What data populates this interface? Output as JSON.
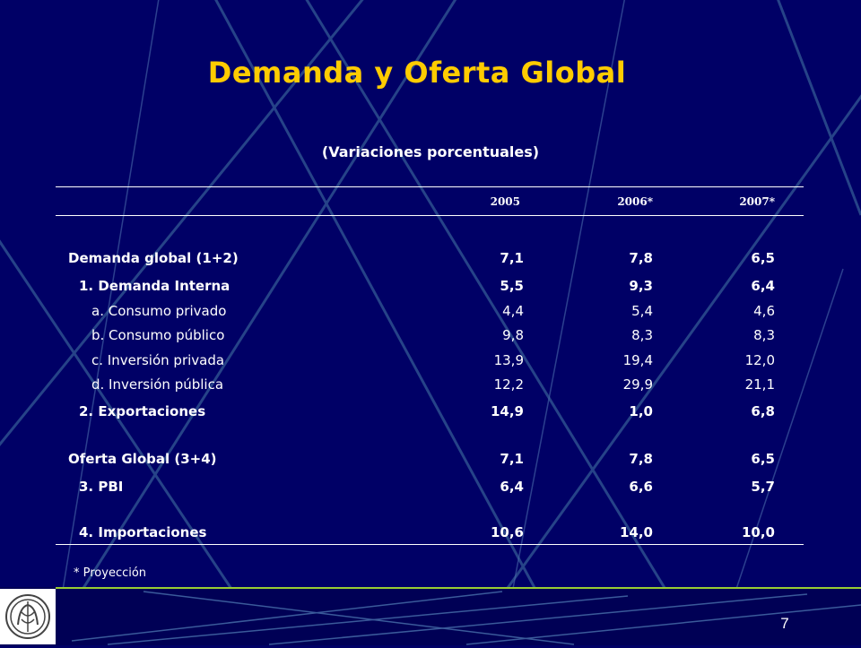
{
  "slide": {
    "title": "Demanda y Oferta Global",
    "subtitle": "(Variaciones porcentuales)",
    "note": "* Proyección",
    "page_number": "7"
  },
  "table": {
    "headers": [
      "2005",
      "2006*",
      "2007*"
    ],
    "rows": [
      {
        "label": "Demanda global (1+2)",
        "values": [
          "7,1",
          "7,8",
          "6,5"
        ]
      },
      {
        "label": "1. Demanda Interna",
        "values": [
          "5,5",
          "9,3",
          "6,4"
        ]
      },
      {
        "label": "a. Consumo privado",
        "values": [
          "4,4",
          "5,4",
          "4,6"
        ]
      },
      {
        "label": "b. Consumo público",
        "values": [
          "9,8",
          "8,3",
          "8,3"
        ]
      },
      {
        "label": "c. Inversión privada",
        "values": [
          "13,9",
          "19,4",
          "12,0"
        ]
      },
      {
        "label": "d. Inversión pública",
        "values": [
          "12,2",
          "29,9",
          "21,1"
        ]
      },
      {
        "label": "2. Exportaciones",
        "values": [
          "14,9",
          "1,0",
          "6,8"
        ]
      },
      {
        "label": "Oferta Global (3+4)",
        "values": [
          "7,1",
          "7,8",
          "6,5"
        ]
      },
      {
        "label": "3. PBI",
        "values": [
          "6,4",
          "6,6",
          "5,7"
        ]
      },
      {
        "label": "4. Importaciones",
        "values": [
          "10,6",
          "14,0",
          "10,0"
        ]
      }
    ]
  },
  "colors": {
    "background": "#000066",
    "title": "#ffcc00",
    "text": "#ffffff",
    "decorative_lines": "#2d4f8f",
    "footer_line": "#99cc33"
  }
}
